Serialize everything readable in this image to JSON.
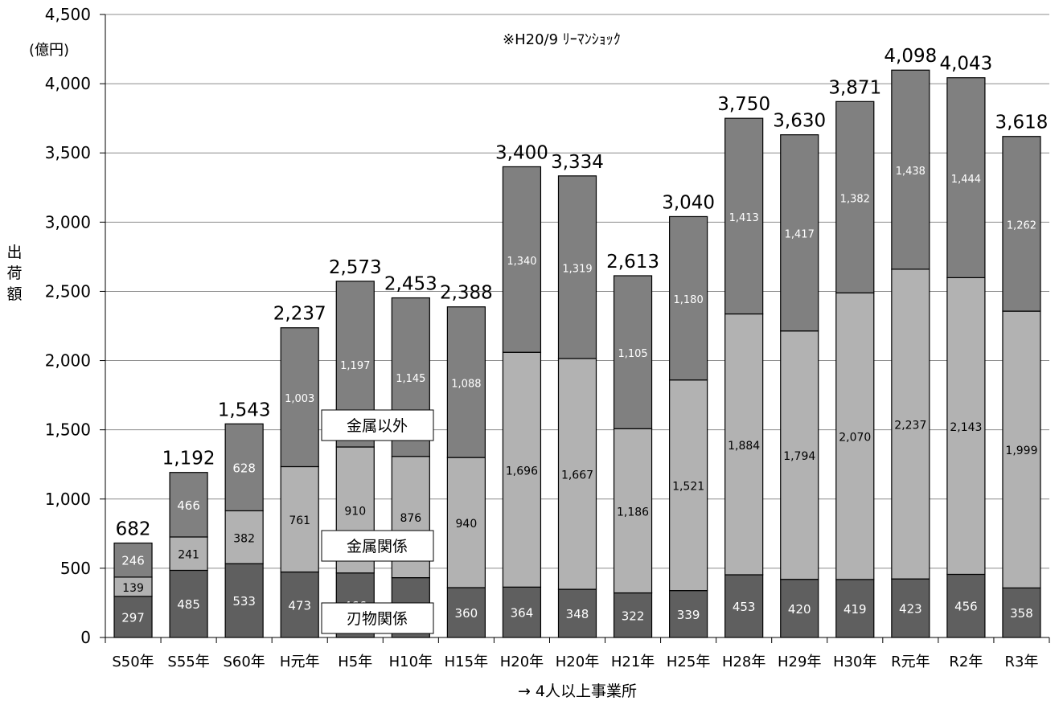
{
  "chart_data": {
    "type": "bar",
    "stacked": true,
    "categories": [
      "S50年",
      "S55年",
      "S60年",
      "H元年",
      "H5年",
      "H10年",
      "H15年",
      "H20年",
      "H20年",
      "H21年",
      "H25年",
      "H28年",
      "H29年",
      "H30年",
      "R元年",
      "R2年",
      "R3年"
    ],
    "series": [
      {
        "name": "刃物関係",
        "color": "#5f5f5f",
        "values": [
          297,
          485,
          533,
          473,
          466,
          432,
          360,
          364,
          348,
          322,
          339,
          453,
          420,
          419,
          423,
          456,
          358
        ]
      },
      {
        "name": "金属関係",
        "color": "#b2b2b2",
        "values": [
          139,
          241,
          382,
          761,
          910,
          876,
          940,
          1696,
          1667,
          1186,
          1521,
          1884,
          1794,
          2070,
          2237,
          2143,
          1999
        ]
      },
      {
        "name": "金属以外",
        "color": "#808080",
        "values": [
          246,
          466,
          628,
          1003,
          1197,
          1145,
          1088,
          1340,
          1319,
          1105,
          1180,
          1413,
          1417,
          1382,
          1438,
          1444,
          1262
        ]
      }
    ],
    "totals": [
      "682",
      "1,192",
      "1,543",
      "2,237",
      "2,573",
      "2,453",
      "2,388",
      "3,400",
      "3,334",
      "2,613",
      "3,040",
      "3,750",
      "3,630",
      "3,871",
      "4,098",
      "4,043",
      "3,618"
    ],
    "segment_labels": [
      [
        "297",
        "485",
        "533",
        "473",
        "466",
        "432",
        "360",
        "364",
        "348",
        "322",
        "339",
        "453",
        "420",
        "419",
        "423",
        "456",
        "358"
      ],
      [
        "139",
        "241",
        "382",
        "761",
        "910",
        "876",
        "940",
        "1,696",
        "1,667",
        "1,186",
        "1,521",
        "1,884",
        "1,794",
        "2,070",
        "2,237",
        "2,143",
        "1,999"
      ],
      [
        "246",
        "466",
        "628",
        "1,003",
        "1,197",
        "1,145",
        "1,088",
        "1,340",
        "1,319",
        "1,105",
        "1,180",
        "1,413",
        "1,417",
        "1,382",
        "1,438",
        "1,444",
        "1,262"
      ]
    ],
    "ylim": [
      0,
      4500
    ],
    "ytick_values": [
      0,
      500,
      1000,
      1500,
      2000,
      2500,
      3000,
      3500,
      4000,
      4500
    ],
    "ytick_labels": [
      "0",
      "500",
      "1,000",
      "1,500",
      "2,000",
      "2,500",
      "3,000",
      "3,500",
      "4,000",
      "4,500"
    ],
    "unit": "(億円)",
    "ylabel": "出荷額",
    "xlabel": "→ 4人以上事業所",
    "annotation": "※H20/9 ﾘｰﾏﾝｼｮｯｸ",
    "grid": "horizontal",
    "legend_style": "boxed labels on chart"
  }
}
